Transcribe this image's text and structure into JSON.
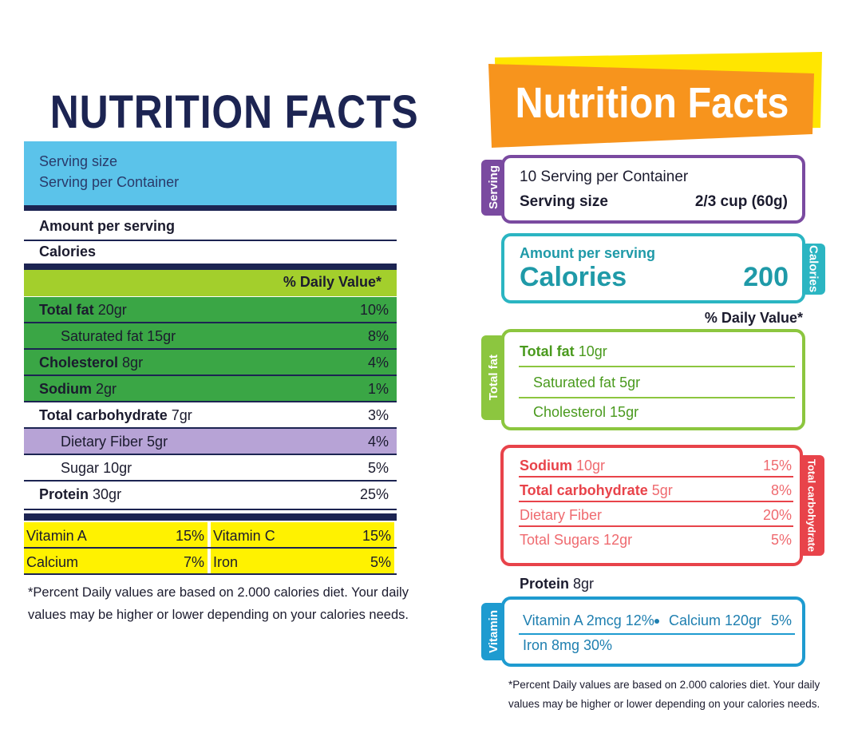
{
  "left": {
    "title": "NUTRITION FACTS",
    "serving_size": "Serving size",
    "serving_per_container": "Serving per Container",
    "amount_per_serving": "Amount per serving",
    "calories": "Calories",
    "daily_value_header": "% Daily Value*",
    "rows": [
      {
        "name": "Total fat",
        "amount": "20gr",
        "dv": "10%"
      },
      {
        "name": "Saturated fat",
        "amount": "15gr",
        "dv": "8%"
      },
      {
        "name": "Cholesterol",
        "amount": "8gr",
        "dv": "4%"
      },
      {
        "name": "Sodium",
        "amount": "2gr",
        "dv": "1%"
      },
      {
        "name": "Total carbohydrate",
        "amount": "7gr",
        "dv": "3%"
      },
      {
        "name": "Dietary Fiber",
        "amount": "5gr",
        "dv": "4%"
      },
      {
        "name": "Sugar",
        "amount": "10gr",
        "dv": "5%"
      },
      {
        "name": "Protein",
        "amount": "30gr",
        "dv": "25%"
      }
    ],
    "vitamins": [
      [
        {
          "name": "Vitamin A",
          "dv": "15%"
        },
        {
          "name": "Vitamin C",
          "dv": "15%"
        }
      ],
      [
        {
          "name": "Calcium",
          "dv": "7%"
        },
        {
          "name": "Iron",
          "dv": "5%"
        }
      ]
    ],
    "footnote": [
      "*Percent Daily values are based on 2.000 calories diet. Your daily",
      "values may be higher or lower depending on your calories needs."
    ]
  },
  "right": {
    "title": "Nutrition Facts",
    "serving": {
      "tab": "Serving",
      "per_container": "10 Serving per Container",
      "size_label": "Serving size",
      "size_value": "2/3 cup (60g)"
    },
    "calories": {
      "tab": "Calories",
      "amount_per_serving": "Amount per serving",
      "label": "Calories",
      "value": "200"
    },
    "daily_value_header": "% Daily Value*",
    "fat": {
      "tab": "Total fat",
      "rows": [
        {
          "name": "Total fat",
          "amount": "10gr"
        },
        {
          "name": "Saturated fat 5gr"
        },
        {
          "name": "Cholesterol 15gr"
        }
      ]
    },
    "carbohydrate": {
      "tab": "Total carbohydrate",
      "rows": [
        {
          "name": "Sodium",
          "amount": "10gr",
          "dv": "15%"
        },
        {
          "name": "Total carbohydrate",
          "amount": "5gr",
          "dv": "8%"
        },
        {
          "name": "Dietary Fiber",
          "dv": "20%"
        },
        {
          "name": "Total Sugars 12gr",
          "dv": "5%"
        }
      ]
    },
    "protein": {
      "name": "Protein",
      "amount": "8gr"
    },
    "vitamin": {
      "tab": "Vitamin",
      "vitamin_a": "Vitamin A  2mcg 12%",
      "calcium": "Calcium 120gr",
      "calcium_dv": "5%",
      "iron": "Iron 8mg 30%"
    },
    "footnote": [
      "*Percent Daily values are based on 2.000 calories diet. Your daily",
      "values may be higher or lower depending on your calories needs."
    ]
  }
}
